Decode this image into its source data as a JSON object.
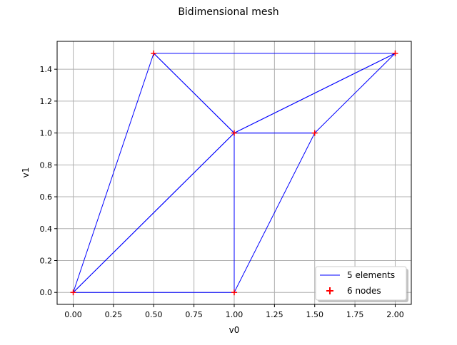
{
  "chart_data": {
    "type": "line",
    "title": "Bidimensional mesh",
    "xlabel": "v0",
    "ylabel": "v1",
    "xlim": [
      -0.1,
      2.1
    ],
    "ylim": [
      -0.075,
      1.575
    ],
    "xticks": [
      "0.00",
      "0.25",
      "0.50",
      "0.75",
      "1.00",
      "1.25",
      "1.50",
      "1.75",
      "2.00"
    ],
    "yticks": [
      "0.0",
      "0.2",
      "0.4",
      "0.6",
      "0.8",
      "1.0",
      "1.2",
      "1.4"
    ],
    "grid": true,
    "legend_position": "lower-right",
    "nodes": [
      [
        0,
        0
      ],
      [
        1,
        0
      ],
      [
        0.5,
        1.5
      ],
      [
        1,
        1
      ],
      [
        1.5,
        1
      ],
      [
        2,
        1.5
      ]
    ],
    "elements": [
      [
        0,
        1,
        3
      ],
      [
        0,
        3,
        2
      ],
      [
        1,
        4,
        3
      ],
      [
        2,
        3,
        5
      ],
      [
        3,
        4,
        5
      ]
    ],
    "series": [
      {
        "name": "5 elements",
        "kind": "mesh-edges",
        "color": "#0000ff"
      },
      {
        "name": "6 nodes",
        "kind": "node-markers",
        "marker": "+",
        "color": "#ff0000"
      }
    ]
  },
  "colors": {
    "edge": "#0000ff",
    "node": "#ff0000",
    "grid": "#b0b0b0"
  }
}
